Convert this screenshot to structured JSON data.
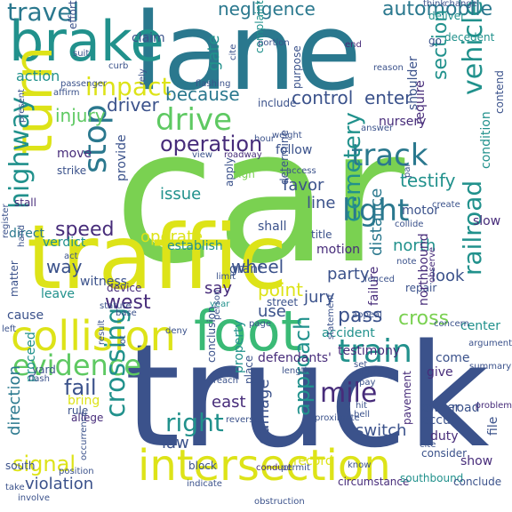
{
  "wordcloud": {
    "palette": {
      "dark_purple": "#472c7a",
      "blue": "#3b528b",
      "teal": "#21918c",
      "dark_teal": "#2a788e",
      "green": "#5ec962",
      "light_green": "#7ad151",
      "yellow": "#dde318",
      "bright_yellow": "#fde725"
    },
    "words": [
      {
        "text": "car",
        "color": "#7ad151"
      },
      {
        "text": "truck",
        "color": "#3b528b"
      },
      {
        "text": "traffic",
        "color": "#dde318"
      },
      {
        "text": "lane",
        "color": "#2a788e"
      },
      {
        "text": "brake",
        "color": "#21918c"
      },
      {
        "text": "foot",
        "color": "#3aba76"
      },
      {
        "text": "intersection",
        "color": "#dde318"
      },
      {
        "text": "turn",
        "color": "#dde318"
      },
      {
        "text": "collision",
        "color": "#dde318"
      },
      {
        "text": "train",
        "color": "#21918c"
      },
      {
        "text": "evidence",
        "color": "#5ec962"
      },
      {
        "text": "drive",
        "color": "#5ec962"
      },
      {
        "text": "track",
        "color": "#2a788e"
      },
      {
        "text": "light",
        "color": "#2a788e"
      },
      {
        "text": "stop",
        "color": "#2a788e"
      },
      {
        "text": "impact",
        "color": "#dde318"
      },
      {
        "text": "travel",
        "color": "#2a788e"
      },
      {
        "text": "vehicle",
        "color": "#21918c"
      },
      {
        "text": "highway",
        "color": "#21918c"
      },
      {
        "text": "crossing",
        "color": "#21918c"
      },
      {
        "text": "mile",
        "color": "#472c7a"
      },
      {
        "text": "speed",
        "color": "#472c7a"
      },
      {
        "text": "operation",
        "color": "#472c7a"
      },
      {
        "text": "signal",
        "color": "#dde318"
      },
      {
        "text": "railroad",
        "color": "#21918c"
      },
      {
        "text": "cemetery",
        "color": "#21918c"
      },
      {
        "text": "right",
        "color": "#21918c"
      },
      {
        "text": "approach",
        "color": "#21918c"
      },
      {
        "text": "fail",
        "color": "#3b528b"
      },
      {
        "text": "pass",
        "color": "#3b528b"
      },
      {
        "text": "cross",
        "color": "#7ad151"
      },
      {
        "text": "automobile",
        "color": "#2a788e"
      },
      {
        "text": "negligence",
        "color": "#2a788e"
      },
      {
        "text": "driver",
        "color": "#3b528b"
      },
      {
        "text": "because",
        "color": "#2a788e"
      },
      {
        "text": "control",
        "color": "#3b528b"
      },
      {
        "text": "enter",
        "color": "#3b528b"
      },
      {
        "text": "section",
        "color": "#21918c"
      },
      {
        "text": "injury",
        "color": "#5ec962"
      },
      {
        "text": "action",
        "color": "#21918c"
      },
      {
        "text": "distance",
        "color": "#2a788e"
      },
      {
        "text": "testify",
        "color": "#21918c"
      },
      {
        "text": "north",
        "color": "#21918c"
      },
      {
        "text": "operate",
        "color": "#dde318"
      },
      {
        "text": "issue",
        "color": "#21918c"
      },
      {
        "text": "favor",
        "color": "#3b528b"
      },
      {
        "text": "line",
        "color": "#3b528b"
      },
      {
        "text": "way",
        "color": "#3b528b"
      },
      {
        "text": "wheel",
        "color": "#3b528b"
      },
      {
        "text": "point",
        "color": "#dde318"
      },
      {
        "text": "say",
        "color": "#472c7a"
      },
      {
        "text": "west",
        "color": "#472c7a"
      },
      {
        "text": "use",
        "color": "#3b528b"
      },
      {
        "text": "look",
        "color": "#3b528b"
      },
      {
        "text": "jury",
        "color": "#3b528b"
      },
      {
        "text": "party",
        "color": "#3b528b"
      },
      {
        "text": "east",
        "color": "#472c7a"
      },
      {
        "text": "law",
        "color": "#3b528b"
      },
      {
        "text": "damage",
        "color": "#3b528b"
      },
      {
        "text": "switch",
        "color": "#3b528b"
      },
      {
        "text": "gate",
        "color": "#21918c"
      },
      {
        "text": "claim",
        "color": "#3b528b"
      },
      {
        "text": "nursery",
        "color": "#472c7a"
      },
      {
        "text": "require",
        "color": "#472c7a"
      },
      {
        "text": "condition",
        "color": "#21918c"
      },
      {
        "text": "shoulder",
        "color": "#3b528b"
      },
      {
        "text": "purpose",
        "color": "#3b528b"
      },
      {
        "text": "deliver",
        "color": "#21918c"
      },
      {
        "text": "decedent",
        "color": "#21918c"
      },
      {
        "text": "go",
        "color": "#3b528b"
      },
      {
        "text": "end",
        "color": "#472c7a"
      },
      {
        "text": "reason",
        "color": "#3b528b"
      },
      {
        "text": "contend",
        "color": "#3b528b"
      },
      {
        "text": "follow",
        "color": "#3b528b"
      },
      {
        "text": "weight",
        "color": "#3b528b"
      },
      {
        "text": "view",
        "color": "#3b528b"
      },
      {
        "text": "roadway",
        "color": "#472c7a"
      },
      {
        "text": "sign",
        "color": "#7ad151"
      },
      {
        "text": "hour",
        "color": "#3b528b"
      },
      {
        "text": "include",
        "color": "#3b528b"
      },
      {
        "text": "complaint",
        "color": "#21918c"
      },
      {
        "text": "present",
        "color": "#3b528b"
      },
      {
        "text": "affirm",
        "color": "#3b528b"
      },
      {
        "text": "move",
        "color": "#472c7a"
      },
      {
        "text": "strike",
        "color": "#3b528b"
      },
      {
        "text": "stall",
        "color": "#472c7a"
      },
      {
        "text": "provide",
        "color": "#3b528b"
      },
      {
        "text": "apply",
        "color": "#3b528b"
      },
      {
        "text": "determine",
        "color": "#3b528b"
      },
      {
        "text": "access",
        "color": "#3b528b"
      },
      {
        "text": "direct",
        "color": "#2a788e"
      },
      {
        "text": "verdict",
        "color": "#21918c"
      },
      {
        "text": "establish",
        "color": "#21918c"
      },
      {
        "text": "shall",
        "color": "#3b528b"
      },
      {
        "text": "title",
        "color": "#3b528b"
      },
      {
        "text": "motion",
        "color": "#472c7a"
      },
      {
        "text": "motor",
        "color": "#3b528b"
      },
      {
        "text": "slow",
        "color": "#472c7a"
      },
      {
        "text": "act",
        "color": "#3b528b"
      },
      {
        "text": "witness",
        "color": "#3b528b"
      },
      {
        "text": "device",
        "color": "#472c7a"
      },
      {
        "text": "grant",
        "color": "#3b528b"
      },
      {
        "text": "leave",
        "color": "#21918c"
      },
      {
        "text": "matter",
        "color": "#3b528b"
      },
      {
        "text": "cause",
        "color": "#3b528b"
      },
      {
        "text": "year",
        "color": "#21918c"
      },
      {
        "text": "street",
        "color": "#3b528b"
      },
      {
        "text": "repair",
        "color": "#3b528b"
      },
      {
        "text": "failure",
        "color": "#472c7a"
      },
      {
        "text": "northbound",
        "color": "#472c7a"
      },
      {
        "text": "observe",
        "color": "#472c7a"
      },
      {
        "text": "accident",
        "color": "#21918c"
      },
      {
        "text": "defendants'",
        "color": "#472c7a"
      },
      {
        "text": "come",
        "color": "#3b528b"
      },
      {
        "text": "give",
        "color": "#472c7a"
      },
      {
        "text": "center",
        "color": "#21918c"
      },
      {
        "text": "testimony",
        "color": "#472c7a"
      },
      {
        "text": "direction",
        "color": "#2a788e"
      },
      {
        "text": "yard",
        "color": "#3b528b"
      },
      {
        "text": "proceed",
        "color": "#21918c"
      },
      {
        "text": "bring",
        "color": "#dde318"
      },
      {
        "text": "rule",
        "color": "#3b528b"
      },
      {
        "text": "allege",
        "color": "#472c7a"
      },
      {
        "text": "south",
        "color": "#3b528b"
      },
      {
        "text": "property",
        "color": "#21918c"
      },
      {
        "text": "owner",
        "color": "#3b528b"
      },
      {
        "text": "road",
        "color": "#3b528b"
      },
      {
        "text": "occur",
        "color": "#3b528b"
      },
      {
        "text": "duty",
        "color": "#472c7a"
      },
      {
        "text": "show",
        "color": "#472c7a"
      },
      {
        "text": "file",
        "color": "#3b528b"
      },
      {
        "text": "block",
        "color": "#3b528b"
      },
      {
        "text": "violation",
        "color": "#3b528b"
      },
      {
        "text": "indicate",
        "color": "#3b528b"
      },
      {
        "text": "conduct",
        "color": "#472c7a"
      },
      {
        "text": "record",
        "color": "#dde318"
      },
      {
        "text": "circumstance",
        "color": "#472c7a"
      },
      {
        "text": "southbound",
        "color": "#21918c"
      },
      {
        "text": "conclude",
        "color": "#3b528b"
      },
      {
        "text": "consider",
        "color": "#3b528b"
      },
      {
        "text": "pavement",
        "color": "#472c7a"
      },
      {
        "text": "involve",
        "color": "#3b528b"
      },
      {
        "text": "obstruction",
        "color": "#3b528b"
      },
      {
        "text": "occurrence",
        "color": "#3b528b"
      },
      {
        "text": "conclusion",
        "color": "#3b528b"
      },
      {
        "text": "place",
        "color": "#3b528b"
      },
      {
        "text": "argue",
        "color": "#3b528b"
      },
      {
        "text": "statement",
        "color": "#3b528b"
      },
      {
        "text": "argument",
        "color": "#3b528b"
      },
      {
        "text": "summary",
        "color": "#3b528b"
      },
      {
        "text": "problem",
        "color": "#472c7a"
      },
      {
        "text": "cite",
        "color": "#3b528b"
      },
      {
        "text": "base",
        "color": "#3b528b"
      },
      {
        "text": "deny",
        "color": "#3b528b"
      },
      {
        "text": "pay",
        "color": "#3b528b"
      },
      {
        "text": "bell",
        "color": "#3b528b"
      },
      {
        "text": "hit",
        "color": "#3b528b"
      },
      {
        "text": "appeal",
        "color": "#3b528b"
      },
      {
        "text": "concern",
        "color": "#3b528b"
      },
      {
        "text": "change",
        "color": "#3b528b"
      },
      {
        "text": "think",
        "color": "#3b528b"
      },
      {
        "text": "portion",
        "color": "#3b528b"
      },
      {
        "text": "cite",
        "color": "#3b528b"
      },
      {
        "text": "suit",
        "color": "#3b528b"
      },
      {
        "text": "effort",
        "color": "#3b528b"
      },
      {
        "text": "passenger",
        "color": "#3b528b"
      },
      {
        "text": "curb",
        "color": "#3b528b"
      },
      {
        "text": "flashing",
        "color": "#3b528b"
      },
      {
        "text": "rely",
        "color": "#3b528b"
      },
      {
        "text": "answer",
        "color": "#3b528b"
      },
      {
        "text": "create",
        "color": "#3b528b"
      },
      {
        "text": "collide",
        "color": "#3b528b"
      },
      {
        "text": "par",
        "color": "#3b528b"
      },
      {
        "text": "fenced",
        "color": "#3b528b"
      },
      {
        "text": "register",
        "color": "#3b528b"
      },
      {
        "text": "statute",
        "color": "#3b528b"
      },
      {
        "text": "left",
        "color": "#3b528b"
      },
      {
        "text": "flash",
        "color": "#3b528b"
      },
      {
        "text": "result",
        "color": "#3b528b"
      },
      {
        "text": "position",
        "color": "#3b528b"
      },
      {
        "text": "person",
        "color": "#3b528b"
      },
      {
        "text": "reach",
        "color": "#3b528b"
      },
      {
        "text": "reverse",
        "color": "#3b528b"
      },
      {
        "text": "permit",
        "color": "#3b528b"
      },
      {
        "text": "take",
        "color": "#3b528b"
      },
      {
        "text": "lot",
        "color": "#3b528b"
      },
      {
        "text": "hand",
        "color": "#3b528b"
      },
      {
        "text": "note",
        "color": "#3b528b"
      },
      {
        "text": "set",
        "color": "#3b528b"
      },
      {
        "text": "limit",
        "color": "#3b528b"
      },
      {
        "text": "page",
        "color": "#3b528b"
      },
      {
        "text": "length",
        "color": "#3b528b"
      },
      {
        "text": "proximate",
        "color": "#3b528b"
      },
      {
        "text": "know",
        "color": "#3b528b"
      }
    ]
  }
}
